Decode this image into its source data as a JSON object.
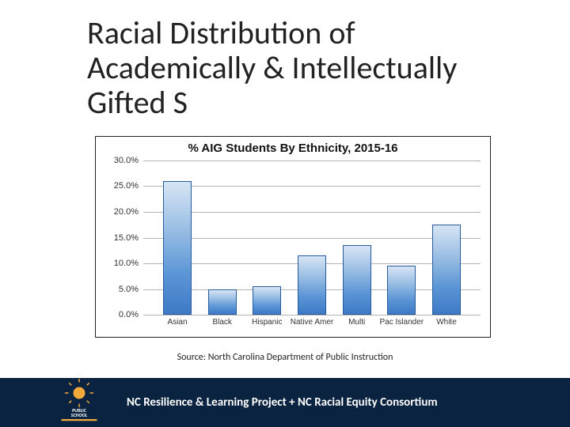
{
  "title": "Racial Distribution of Academically & Intellectually Gifted S",
  "chart": {
    "type": "bar",
    "title": "% AIG Students By Ethnicity, 2015-16",
    "title_fontsize": 15,
    "categories": [
      "Asian",
      "Black",
      "Hispanic",
      "Native Amer",
      "Multi",
      "Pac Islander",
      "White"
    ],
    "values": [
      26.0,
      5.0,
      5.5,
      11.5,
      13.5,
      9.5,
      17.5
    ],
    "ylim": [
      0,
      30
    ],
    "ytick_step": 5,
    "ytick_labels": [
      "0.0%",
      "5.0%",
      "10.0%",
      "15.0%",
      "20.0%",
      "25.0%",
      "30.0%"
    ],
    "bar_fill_top": "#d7e5f5",
    "bar_fill_bottom": "#3d7ac5",
    "bar_border": "#285a9e",
    "grid_color": "#b5b5b5",
    "background_color": "#ffffff",
    "bar_width_pct": 8.5,
    "bar_gap_pct": 13.3,
    "x_label_fontsize": 10,
    "y_label_fontsize": 11
  },
  "source": "Source: North Carolina Department of Public Instruction",
  "footer": {
    "text": "NC Resilience & Learning Project + NC Racial Equity Consortium",
    "band_color": "#0a2340",
    "logo_label": "Public School Forum",
    "logo_colors": {
      "sun": "#f2a93b",
      "text": "#0a2340",
      "base": "#0a2340"
    }
  }
}
